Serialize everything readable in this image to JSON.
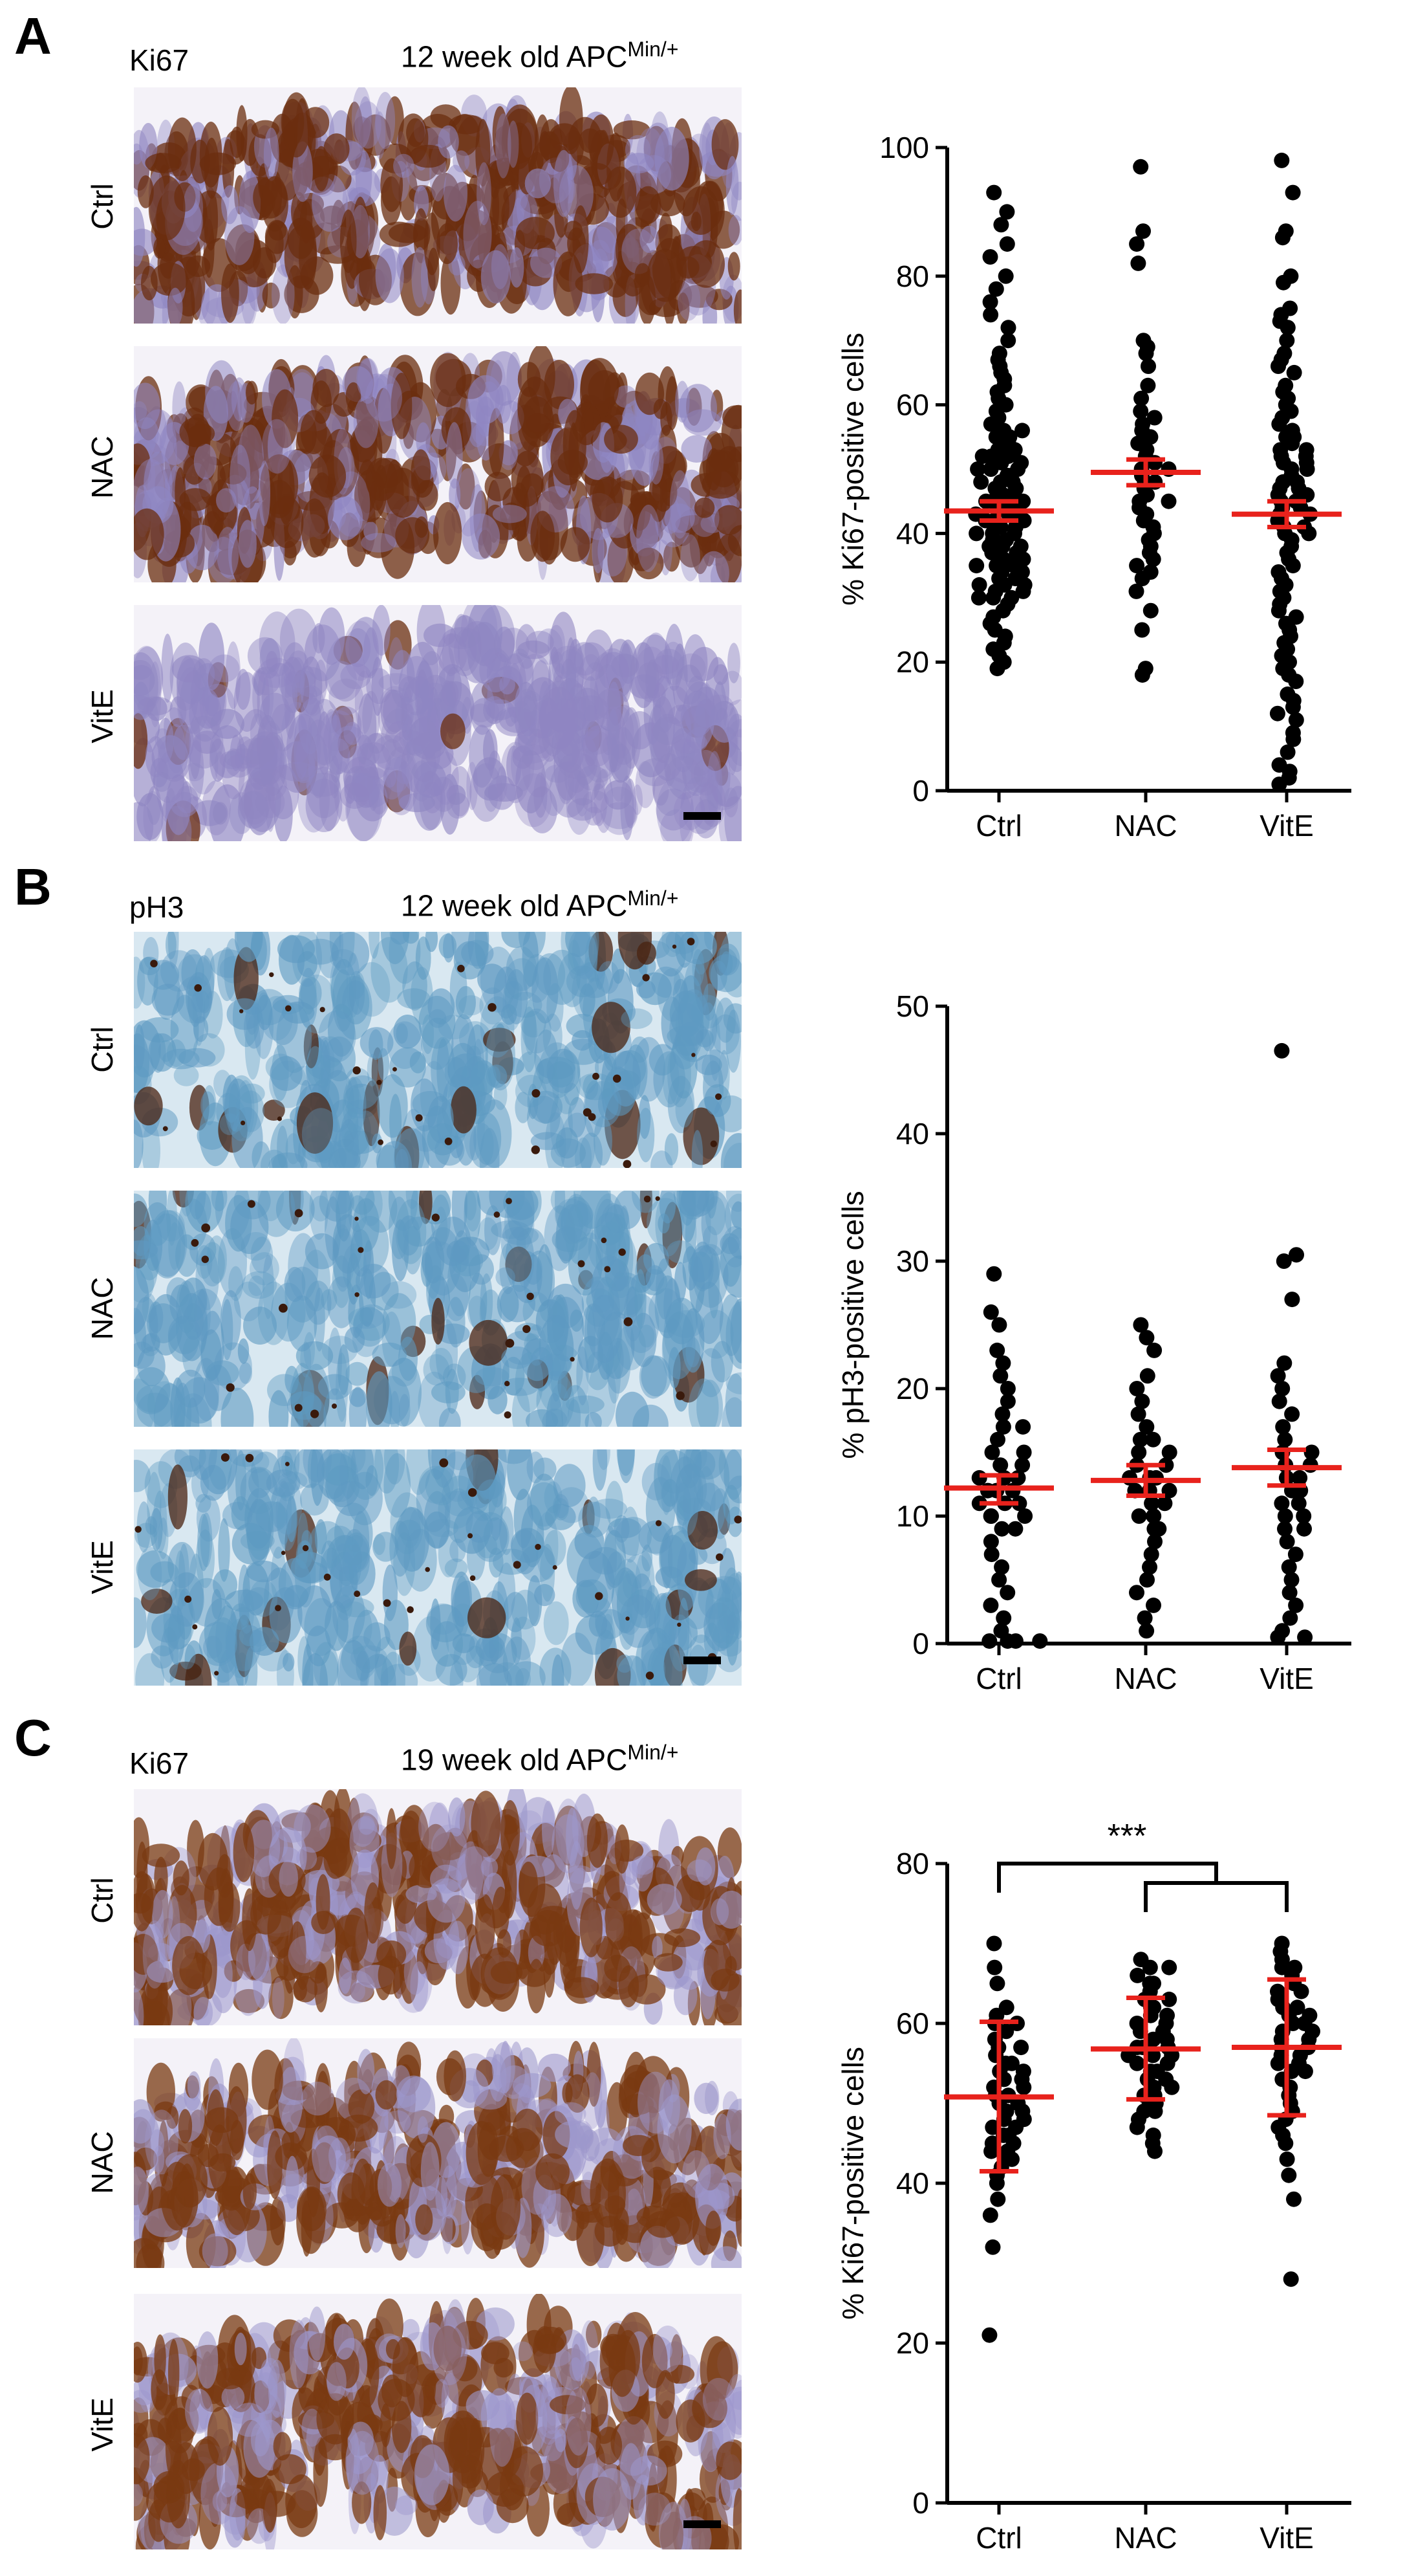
{
  "panels": [
    {
      "letter": "A",
      "stain": "Ki67",
      "age_text": "12 week old APC",
      "age_sup": "Min/+",
      "rows": [
        "Ctrl",
        "NAC",
        "VitE"
      ],
      "stain_color": "#6b2e0f",
      "counter_color": "#8f86c2"
    },
    {
      "letter": "B",
      "stain": "pH3",
      "age_text": "12 week old APC",
      "age_sup": "Min/+",
      "rows": [
        "Ctrl",
        "NAC",
        "VitE"
      ],
      "stain_color": "#4a2310",
      "counter_color": "#5e9ac2"
    },
    {
      "letter": "C",
      "stain": "Ki67",
      "age_text": "19 week old APC",
      "age_sup": "Min/+",
      "rows": [
        "Ctrl",
        "NAC",
        "VitE"
      ],
      "stain_color": "#7a3a12",
      "counter_color": "#9d97cc"
    }
  ],
  "chart_data": [
    {
      "type": "scatter",
      "ylabel": "% Ki67-positive cells",
      "categories": [
        "Ctrl",
        "NAC",
        "VitE"
      ],
      "ylim": [
        0,
        100
      ],
      "yticks": [
        0,
        20,
        40,
        60,
        80,
        100
      ],
      "mean_color": "#e8221c",
      "point_color": "#000000",
      "series": [
        {
          "mean": 43.5,
          "err_low": 42,
          "err_high": 45,
          "values": [
            93,
            90,
            88,
            85,
            83,
            80,
            78,
            76,
            74,
            72,
            70,
            68,
            67,
            66,
            65,
            64,
            63,
            62,
            61,
            60,
            59,
            58,
            57,
            56,
            56,
            55,
            55,
            54,
            54,
            53,
            53,
            52,
            52,
            51,
            51,
            50,
            50,
            49,
            49,
            48,
            48,
            47,
            47,
            46,
            46,
            45,
            45,
            44,
            44,
            43,
            43,
            43,
            42,
            42,
            41,
            41,
            40,
            40,
            39,
            39,
            38,
            38,
            37,
            37,
            36,
            36,
            35,
            35,
            34,
            34,
            33,
            33,
            32,
            32,
            31,
            31,
            30,
            30,
            29,
            28,
            27,
            26,
            25,
            24,
            23,
            22,
            21,
            20,
            19,
            30,
            32,
            35,
            38,
            40,
            42,
            45,
            48,
            50,
            52
          ]
        },
        {
          "mean": 49.5,
          "err_low": 47.5,
          "err_high": 51.5,
          "values": [
            97,
            87,
            85,
            82,
            70,
            69,
            68,
            66,
            63,
            61,
            59,
            58,
            57,
            56,
            55,
            54,
            53,
            52,
            51,
            50,
            50,
            49,
            48,
            48,
            47,
            46,
            45,
            45,
            44,
            43,
            42,
            41,
            40,
            39,
            38,
            37,
            36,
            35,
            34,
            33,
            31,
            28,
            25,
            19,
            18
          ]
        },
        {
          "mean": 43,
          "err_low": 41,
          "err_high": 45,
          "values": [
            98,
            93,
            87,
            86,
            80,
            79,
            75,
            74,
            73,
            72,
            70,
            68,
            67,
            66,
            65,
            63,
            62,
            61,
            60,
            59,
            58,
            57,
            56,
            55,
            55,
            54,
            53,
            53,
            52,
            52,
            51,
            51,
            50,
            50,
            49,
            48,
            48,
            47,
            47,
            46,
            46,
            45,
            45,
            44,
            44,
            43,
            43,
            42,
            41,
            41,
            40,
            40,
            39,
            38,
            37,
            36,
            35,
            34,
            33,
            32,
            31,
            30,
            29,
            28,
            27,
            26,
            25,
            24,
            23,
            22,
            21,
            20,
            19,
            18,
            17,
            15,
            14,
            13,
            12,
            11,
            9,
            8,
            6,
            4,
            3,
            2,
            1
          ]
        }
      ]
    },
    {
      "type": "scatter",
      "ylabel": "% pH3-positive cells",
      "categories": [
        "Ctrl",
        "NAC",
        "VitE"
      ],
      "ylim": [
        0,
        50
      ],
      "yticks": [
        0,
        10,
        20,
        30,
        40,
        50
      ],
      "mean_color": "#e8221c",
      "point_color": "#000000",
      "series": [
        {
          "mean": 12.2,
          "err_low": 11,
          "err_high": 13.2,
          "values": [
            29,
            26,
            25,
            23,
            22,
            21,
            20,
            19,
            18,
            17,
            17,
            16,
            15,
            15,
            14,
            14,
            13,
            13,
            13,
            12,
            12,
            12,
            11,
            11,
            11,
            10,
            10,
            10,
            9,
            9,
            8,
            7,
            6,
            5,
            4,
            3,
            2,
            1,
            0.2,
            0.2,
            0.2,
            0.2
          ]
        },
        {
          "mean": 12.8,
          "err_low": 11.6,
          "err_high": 14,
          "values": [
            25,
            24,
            23,
            21,
            20,
            19,
            18,
            17,
            16,
            16,
            15,
            15,
            14,
            14,
            13,
            13,
            13,
            12,
            12,
            12,
            11,
            11,
            10,
            10,
            9,
            9,
            8,
            7,
            6,
            5,
            4,
            3,
            2,
            1
          ]
        },
        {
          "mean": 13.8,
          "err_low": 12.4,
          "err_high": 15.2,
          "values": [
            46.5,
            30.5,
            30,
            27,
            22,
            21,
            20,
            19,
            18,
            17,
            16,
            15,
            15,
            14,
            14,
            13,
            13,
            12,
            12,
            11,
            11,
            10,
            10,
            9,
            9,
            8,
            7,
            6,
            5,
            4,
            3,
            2,
            1,
            0.5,
            0.5
          ]
        }
      ]
    },
    {
      "type": "scatter",
      "ylabel": "% Ki67-positive cells",
      "categories": [
        "Ctrl",
        "NAC",
        "VitE"
      ],
      "ylim": [
        0,
        80
      ],
      "yticks": [
        0,
        20,
        40,
        60,
        80
      ],
      "significance": "***",
      "mean_color": "#e8221c",
      "point_color": "#000000",
      "series": [
        {
          "mean": 50.8,
          "err_low": 41.5,
          "err_high": 60.2,
          "values": [
            70,
            67,
            65,
            62,
            61,
            60,
            60,
            59,
            58,
            57,
            57,
            56,
            55,
            55,
            54,
            54,
            53,
            53,
            52,
            52,
            51,
            51,
            50,
            50,
            49,
            49,
            48,
            48,
            47,
            47,
            46,
            46,
            45,
            45,
            44,
            44,
            43,
            43,
            42,
            41,
            40,
            38,
            36,
            32,
            21
          ]
        },
        {
          "mean": 56.8,
          "err_low": 50.5,
          "err_high": 63.2,
          "values": [
            68,
            67,
            67,
            66,
            65,
            65,
            64,
            63,
            63,
            62,
            62,
            61,
            61,
            60,
            60,
            59,
            59,
            58,
            58,
            57,
            57,
            57,
            56,
            56,
            56,
            55,
            55,
            54,
            54,
            53,
            53,
            52,
            52,
            51,
            51,
            50,
            50,
            49,
            49,
            48,
            47,
            46,
            45,
            44
          ]
        },
        {
          "mean": 57,
          "err_low": 48.5,
          "err_high": 65.5,
          "values": [
            70,
            69,
            68,
            67,
            67,
            66,
            65,
            64,
            64,
            63,
            62,
            62,
            61,
            61,
            60,
            60,
            59,
            59,
            58,
            58,
            57,
            57,
            56,
            56,
            55,
            55,
            54,
            54,
            53,
            52,
            51,
            50,
            49,
            48,
            47,
            46,
            45,
            43,
            41,
            38,
            28
          ]
        }
      ]
    }
  ]
}
